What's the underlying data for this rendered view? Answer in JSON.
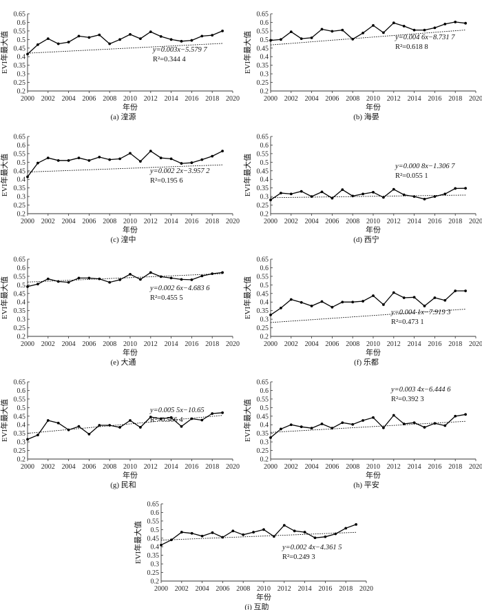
{
  "chart_data": [
    {
      "type": "line",
      "caption": "(a) 湟源",
      "xlabel": "年份",
      "ylabel": "EVI年最大值",
      "xlim": [
        2000,
        2020
      ],
      "ylim": [
        0.2,
        0.65
      ],
      "x": [
        2000,
        2001,
        2002,
        2003,
        2004,
        2005,
        2006,
        2007,
        2008,
        2009,
        2010,
        2011,
        2012,
        2013,
        2014,
        2015,
        2016,
        2017,
        2018,
        2019
      ],
      "values": [
        0.415,
        0.47,
        0.505,
        0.475,
        0.485,
        0.52,
        0.512,
        0.527,
        0.475,
        0.5,
        0.53,
        0.505,
        0.545,
        0.518,
        0.5,
        0.49,
        0.495,
        0.52,
        0.525,
        0.55
      ],
      "trend": {
        "slope": 0.003,
        "intercept": -5.5797,
        "equation": "y=0.003x−5.579 7",
        "r2_text": "R²=0.344 4"
      }
    },
    {
      "type": "line",
      "caption": "(b) 海晏",
      "xlabel": "年份",
      "ylabel": "EVI年最大值",
      "xlim": [
        2000,
        2020
      ],
      "ylim": [
        0.2,
        0.65
      ],
      "x": [
        2000,
        2001,
        2002,
        2003,
        2004,
        2005,
        2006,
        2007,
        2008,
        2009,
        2010,
        2011,
        2012,
        2013,
        2014,
        2015,
        2016,
        2017,
        2018,
        2019
      ],
      "values": [
        0.495,
        0.5,
        0.545,
        0.505,
        0.51,
        0.56,
        0.548,
        0.555,
        0.502,
        0.538,
        0.582,
        0.54,
        0.597,
        0.578,
        0.555,
        0.555,
        0.568,
        0.59,
        0.602,
        0.595
      ],
      "trend": {
        "slope": 0.0046,
        "intercept": -8.7317,
        "equation": "y=0.004 6x−8.731 7",
        "r2_text": "R²=0.618 8"
      }
    },
    {
      "type": "line",
      "caption": "(c) 湟中",
      "xlabel": "年份",
      "ylabel": "EVI年最大值",
      "xlim": [
        2000,
        2020
      ],
      "ylim": [
        0.2,
        0.65
      ],
      "x": [
        2000,
        2001,
        2002,
        2003,
        2004,
        2005,
        2006,
        2007,
        2008,
        2009,
        2010,
        2011,
        2012,
        2013,
        2014,
        2015,
        2016,
        2017,
        2018,
        2019
      ],
      "values": [
        0.415,
        0.495,
        0.525,
        0.51,
        0.51,
        0.525,
        0.51,
        0.53,
        0.515,
        0.52,
        0.552,
        0.505,
        0.565,
        0.525,
        0.52,
        0.493,
        0.497,
        0.515,
        0.535,
        0.565
      ],
      "trend": {
        "slope": 0.0022,
        "intercept": -3.9572,
        "equation": "y=0.002 2x−3.957 2",
        "r2_text": "R²=0.195 6"
      }
    },
    {
      "type": "line",
      "caption": "(d) 西宁",
      "xlabel": "年份",
      "ylabel": "EVI年最大值",
      "xlim": [
        2000,
        2020
      ],
      "ylim": [
        0.2,
        0.65
      ],
      "x": [
        2000,
        2001,
        2002,
        2003,
        2004,
        2005,
        2006,
        2007,
        2008,
        2009,
        2010,
        2011,
        2012,
        2013,
        2014,
        2015,
        2016,
        2017,
        2018,
        2019
      ],
      "values": [
        0.28,
        0.32,
        0.315,
        0.33,
        0.3,
        0.327,
        0.29,
        0.34,
        0.303,
        0.315,
        0.325,
        0.295,
        0.342,
        0.31,
        0.3,
        0.285,
        0.3,
        0.315,
        0.347,
        0.348
      ],
      "trend": {
        "slope": 0.0008,
        "intercept": -1.3067,
        "equation": "y=0.000 8x−1.306 7",
        "r2_text": "R²=0.055 1"
      }
    },
    {
      "type": "line",
      "caption": "(e) 大通",
      "xlabel": "年份",
      "ylabel": "EVI年最大值",
      "xlim": [
        2000,
        2020
      ],
      "ylim": [
        0.2,
        0.65
      ],
      "x": [
        2000,
        2001,
        2002,
        2003,
        2004,
        2005,
        2006,
        2007,
        2008,
        2009,
        2010,
        2011,
        2012,
        2013,
        2014,
        2015,
        2016,
        2017,
        2018,
        2019
      ],
      "values": [
        0.49,
        0.505,
        0.535,
        0.52,
        0.515,
        0.54,
        0.54,
        0.535,
        0.515,
        0.53,
        0.562,
        0.532,
        0.572,
        0.548,
        0.54,
        0.532,
        0.53,
        0.552,
        0.565,
        0.572
      ],
      "trend": {
        "slope": 0.0026,
        "intercept": -4.6836,
        "equation": "y=0.002 6x−4.683 6",
        "r2_text": "R²=0.455 5"
      }
    },
    {
      "type": "line",
      "caption": "(f) 乐都",
      "xlabel": "年份",
      "ylabel": "EVI年最大值",
      "xlim": [
        2000,
        2020
      ],
      "ylim": [
        0.2,
        0.65
      ],
      "x": [
        2000,
        2001,
        2002,
        2003,
        2004,
        2005,
        2006,
        2007,
        2008,
        2009,
        2010,
        2011,
        2012,
        2013,
        2014,
        2015,
        2016,
        2017,
        2018,
        2019
      ],
      "values": [
        0.325,
        0.365,
        0.415,
        0.398,
        0.377,
        0.403,
        0.37,
        0.4,
        0.4,
        0.405,
        0.437,
        0.385,
        0.455,
        0.425,
        0.428,
        0.377,
        0.425,
        0.41,
        0.465,
        0.465
      ],
      "trend": {
        "slope": 0.0041,
        "intercept": -7.9193,
        "equation": "y=0.004 1x−7.919 3",
        "r2_text": "R²=0.473 1"
      }
    },
    {
      "type": "line",
      "caption": "(g) 民和",
      "xlabel": "年份",
      "ylabel": "EVI年最大值",
      "xlim": [
        2000,
        2020
      ],
      "ylim": [
        0.2,
        0.65
      ],
      "x": [
        2000,
        2001,
        2002,
        2003,
        2004,
        2005,
        2006,
        2007,
        2008,
        2009,
        2010,
        2011,
        2012,
        2013,
        2014,
        2015,
        2016,
        2017,
        2018,
        2019
      ],
      "values": [
        0.315,
        0.34,
        0.425,
        0.41,
        0.37,
        0.39,
        0.345,
        0.397,
        0.397,
        0.385,
        0.425,
        0.385,
        0.445,
        0.435,
        0.442,
        0.39,
        0.435,
        0.427,
        0.465,
        0.47
      ],
      "trend": {
        "slope": 0.0055,
        "intercept": -10.65,
        "equation": "y=0.005 5x−10.65",
        "r2_text": "R²=0.566 4"
      }
    },
    {
      "type": "line",
      "caption": "(h) 平安",
      "xlabel": "年份",
      "ylabel": "EVI年最大值",
      "xlim": [
        2000,
        2020
      ],
      "ylim": [
        0.2,
        0.65
      ],
      "x": [
        2000,
        2001,
        2002,
        2003,
        2004,
        2005,
        2006,
        2007,
        2008,
        2009,
        2010,
        2011,
        2012,
        2013,
        2014,
        2015,
        2016,
        2017,
        2018,
        2019
      ],
      "values": [
        0.325,
        0.375,
        0.4,
        0.388,
        0.38,
        0.405,
        0.38,
        0.412,
        0.402,
        0.425,
        0.442,
        0.382,
        0.455,
        0.405,
        0.412,
        0.385,
        0.408,
        0.395,
        0.45,
        0.46
      ],
      "trend": {
        "slope": 0.0034,
        "intercept": -6.4446,
        "equation": "y=0.003 4x−6.444 6",
        "r2_text": "R²=0.392 3"
      }
    },
    {
      "type": "line",
      "caption": "(i) 互助",
      "xlabel": "年份",
      "ylabel": "EVI年最大值",
      "xlim": [
        2000,
        2020
      ],
      "ylim": [
        0.2,
        0.65
      ],
      "x": [
        2000,
        2001,
        2002,
        2003,
        2004,
        2005,
        2006,
        2007,
        2008,
        2009,
        2010,
        2011,
        2012,
        2013,
        2014,
        2015,
        2016,
        2017,
        2018,
        2019
      ],
      "values": [
        0.41,
        0.44,
        0.485,
        0.478,
        0.462,
        0.482,
        0.455,
        0.492,
        0.47,
        0.485,
        0.5,
        0.46,
        0.525,
        0.492,
        0.485,
        0.452,
        0.458,
        0.475,
        0.508,
        0.53
      ],
      "trend": {
        "slope": 0.0024,
        "intercept": -4.3615,
        "equation": "y=0.002 4x−4.361 5",
        "r2_text": "R²=0.249 3"
      }
    }
  ]
}
